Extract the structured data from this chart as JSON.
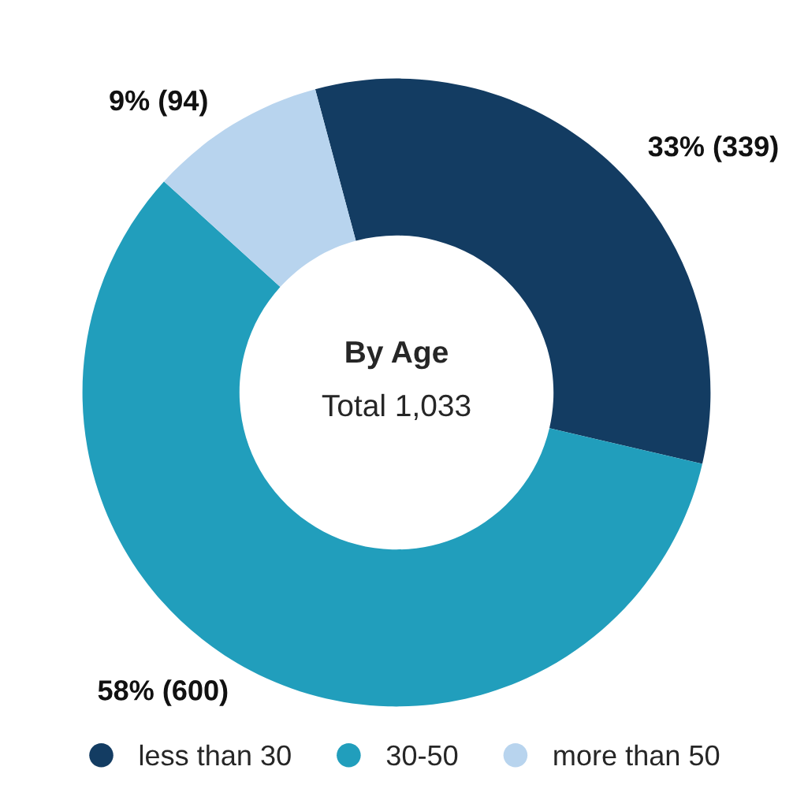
{
  "chart_data": {
    "type": "donut",
    "title": "By Age",
    "annotations": [
      "Total 1,033"
    ],
    "categories": [
      "less than 30",
      "30-50",
      "more than 50"
    ],
    "values": [
      339,
      600,
      94
    ],
    "colors": [
      "#133c62",
      "#219ebc",
      "#b8d4ee"
    ],
    "value_labels": [
      "33% (339)",
      "58% (600)",
      "9% (94)"
    ],
    "legend": "bottom"
  }
}
